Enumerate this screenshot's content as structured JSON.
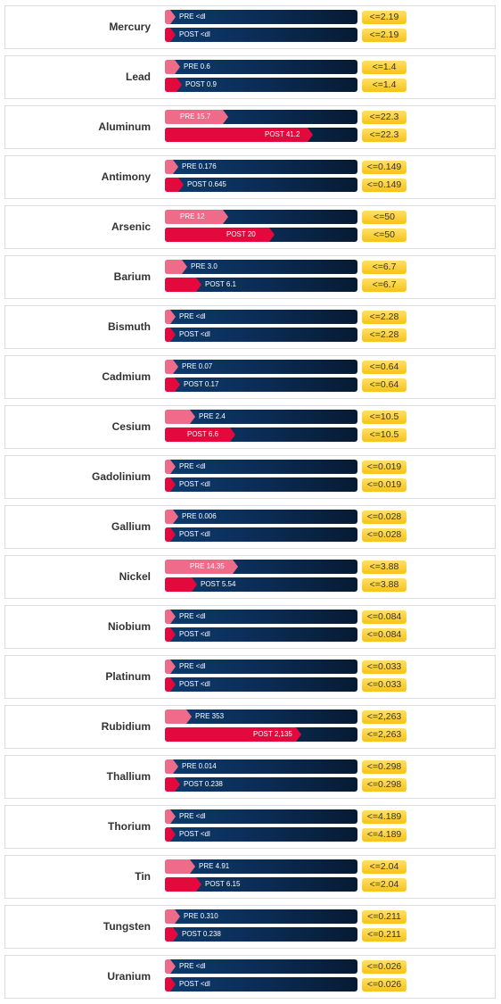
{
  "chart_data": {
    "type": "bar",
    "orientation": "horizontal",
    "colors": {
      "pre": "#f06a8a",
      "post": "#e4093d",
      "track": "#0a2b52",
      "limit": "#f7c21a"
    },
    "elements": [
      {
        "name": "Mercury",
        "pre": {
          "text": "PRE <dl",
          "value": null,
          "fraction": 0.03
        },
        "post": {
          "text": "POST <dl",
          "value": null,
          "fraction": 0.03
        },
        "limit": "<=2.19"
      },
      {
        "name": "Lead",
        "pre": {
          "text": "PRE 0.6",
          "value": 0.6,
          "fraction": 0.05
        },
        "post": {
          "text": "POST 0.9",
          "value": 0.9,
          "fraction": 0.06
        },
        "limit": "<=1.4"
      },
      {
        "name": "Aluminum",
        "pre": {
          "text": "PRE 15.7",
          "value": 15.7,
          "fraction": 0.3
        },
        "post": {
          "text": "POST 41.2",
          "value": 41.2,
          "fraction": 0.74
        },
        "limit": "<=22.3"
      },
      {
        "name": "Antimony",
        "pre": {
          "text": "PRE 0.176",
          "value": 0.176,
          "fraction": 0.04
        },
        "post": {
          "text": "POST 0.645",
          "value": 0.645,
          "fraction": 0.07
        },
        "limit": "<=0.149"
      },
      {
        "name": "Arsenic",
        "pre": {
          "text": "PRE 12",
          "value": 12,
          "fraction": 0.3
        },
        "post": {
          "text": "POST 20",
          "value": 20,
          "fraction": 0.54
        },
        "limit": "<=50"
      },
      {
        "name": "Barium",
        "pre": {
          "text": "PRE 3.0",
          "value": 3.0,
          "fraction": 0.09
        },
        "post": {
          "text": "POST 6.1",
          "value": 6.1,
          "fraction": 0.16
        },
        "limit": "<=6.7"
      },
      {
        "name": "Bismuth",
        "pre": {
          "text": "PRE <dl",
          "value": null,
          "fraction": 0.03
        },
        "post": {
          "text": "POST <dl",
          "value": null,
          "fraction": 0.03
        },
        "limit": "<=2.28"
      },
      {
        "name": "Cadmium",
        "pre": {
          "text": "PRE 0.07",
          "value": 0.07,
          "fraction": 0.04
        },
        "post": {
          "text": "POST 0.17",
          "value": 0.17,
          "fraction": 0.05
        },
        "limit": "<=0.64"
      },
      {
        "name": "Cesium",
        "pre": {
          "text": "PRE 2.4",
          "value": 2.4,
          "fraction": 0.13
        },
        "post": {
          "text": "POST 6.6",
          "value": 6.6,
          "fraction": 0.34
        },
        "limit": "<=10.5"
      },
      {
        "name": "Gadolinium",
        "pre": {
          "text": "PRE <dl",
          "value": null,
          "fraction": 0.03
        },
        "post": {
          "text": "POST <dl",
          "value": null,
          "fraction": 0.03
        },
        "limit": "<=0.019"
      },
      {
        "name": "Gallium",
        "pre": {
          "text": "PRE 0.006",
          "value": 0.006,
          "fraction": 0.04
        },
        "post": {
          "text": "POST <dl",
          "value": null,
          "fraction": 0.03
        },
        "limit": "<=0.028"
      },
      {
        "name": "Nickel",
        "pre": {
          "text": "PRE 14.35",
          "value": 14.35,
          "fraction": 0.35
        },
        "post": {
          "text": "POST 5.54",
          "value": 5.54,
          "fraction": 0.14
        },
        "limit": "<=3.88"
      },
      {
        "name": "Niobium",
        "pre": {
          "text": "PRE <dl",
          "value": null,
          "fraction": 0.03
        },
        "post": {
          "text": "POST <dl",
          "value": null,
          "fraction": 0.03
        },
        "limit": "<=0.084"
      },
      {
        "name": "Platinum",
        "pre": {
          "text": "PRE <dl",
          "value": null,
          "fraction": 0.03
        },
        "post": {
          "text": "POST <dl",
          "value": null,
          "fraction": 0.03
        },
        "limit": "<=0.033"
      },
      {
        "name": "Rubidium",
        "pre": {
          "text": "PRE 353",
          "value": 353,
          "fraction": 0.11
        },
        "post": {
          "text": "POST 2,135",
          "value": 2135,
          "fraction": 0.68
        },
        "limit": "<=2,263"
      },
      {
        "name": "Thallium",
        "pre": {
          "text": "PRE 0.014",
          "value": 0.014,
          "fraction": 0.04
        },
        "post": {
          "text": "POST 0.238",
          "value": 0.238,
          "fraction": 0.05
        },
        "limit": "<=0.298"
      },
      {
        "name": "Thorium",
        "pre": {
          "text": "PRE <dl",
          "value": null,
          "fraction": 0.03
        },
        "post": {
          "text": "POST <dl",
          "value": null,
          "fraction": 0.03
        },
        "limit": "<=4.189"
      },
      {
        "name": "Tin",
        "pre": {
          "text": "PRE 4.91",
          "value": 4.91,
          "fraction": 0.13
        },
        "post": {
          "text": "POST 6.15",
          "value": 6.15,
          "fraction": 0.16
        },
        "limit": "<=2.04"
      },
      {
        "name": "Tungsten",
        "pre": {
          "text": "PRE 0.310",
          "value": 0.31,
          "fraction": 0.05
        },
        "post": {
          "text": "POST 0.238",
          "value": 0.238,
          "fraction": 0.04
        },
        "limit": "<=0.211"
      },
      {
        "name": "Uranium",
        "pre": {
          "text": "PRE <dl",
          "value": null,
          "fraction": 0.03
        },
        "post": {
          "text": "POST <dl",
          "value": null,
          "fraction": 0.03
        },
        "limit": "<=0.026"
      }
    ]
  }
}
